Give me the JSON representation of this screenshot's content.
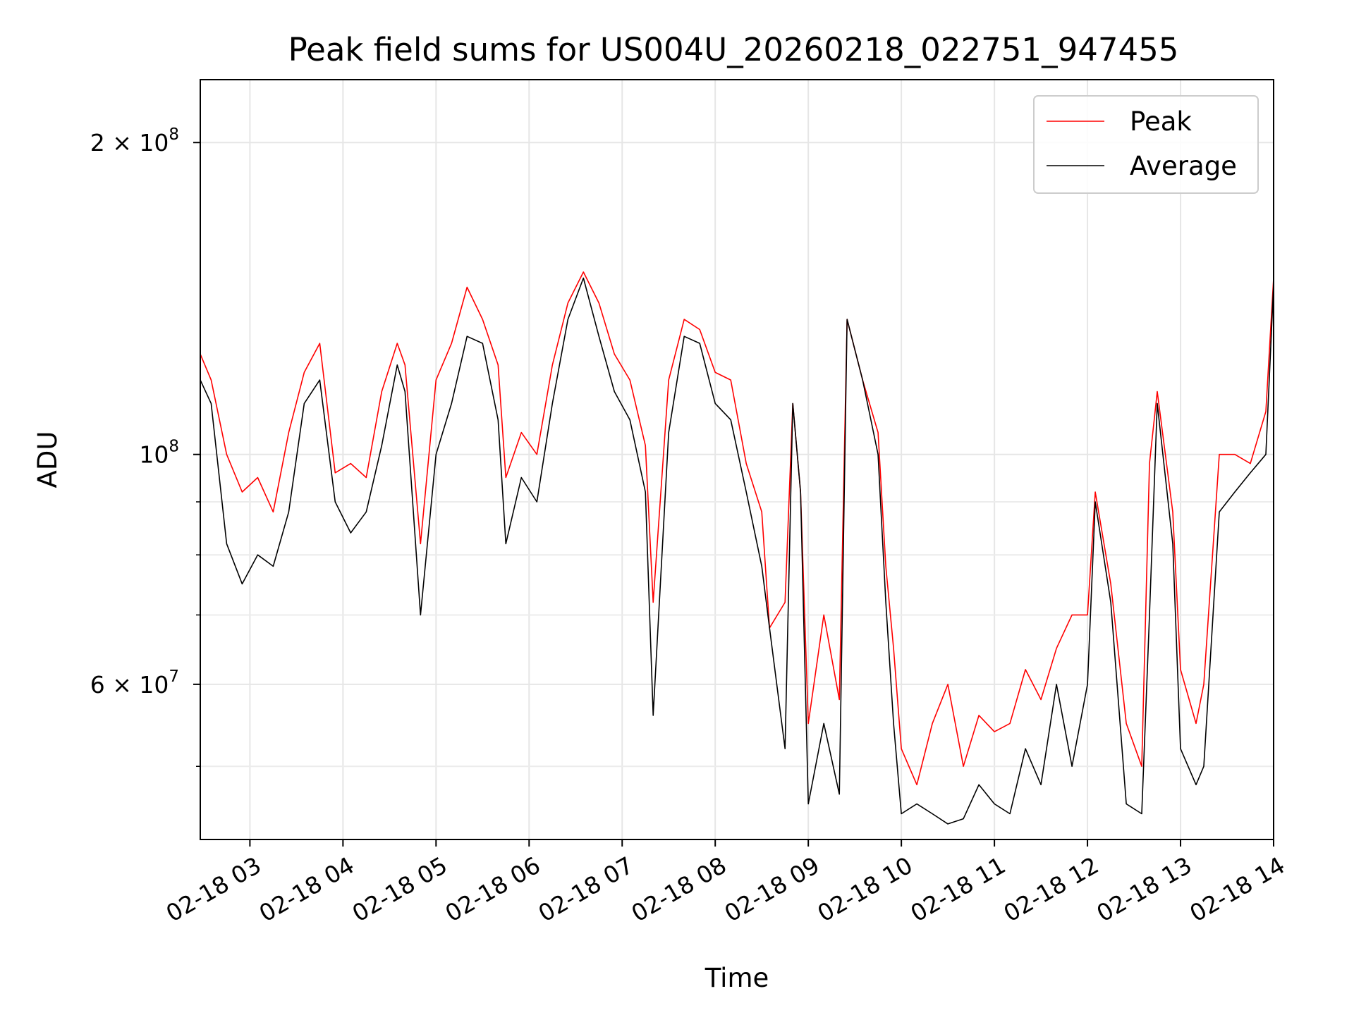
{
  "chart_data": {
    "type": "line",
    "title": "Peak field sums for US004U_20260218_022751_947455",
    "xlabel": "Time",
    "ylabel": "ADU",
    "y_scale": "log",
    "ylim": [
      42500000,
      230000000
    ],
    "xlim": [
      "2026-02-18 02:28",
      "2026-02-18 14:00"
    ],
    "x_ticks": [
      {
        "at": "2026-02-18 03:00",
        "label": "02-18 03"
      },
      {
        "at": "2026-02-18 04:00",
        "label": "02-18 04"
      },
      {
        "at": "2026-02-18 05:00",
        "label": "02-18 05"
      },
      {
        "at": "2026-02-18 06:00",
        "label": "02-18 06"
      },
      {
        "at": "2026-02-18 07:00",
        "label": "02-18 07"
      },
      {
        "at": "2026-02-18 08:00",
        "label": "02-18 08"
      },
      {
        "at": "2026-02-18 09:00",
        "label": "02-18 09"
      },
      {
        "at": "2026-02-18 10:00",
        "label": "02-18 10"
      },
      {
        "at": "2026-02-18 11:00",
        "label": "02-18 11"
      },
      {
        "at": "2026-02-18 12:00",
        "label": "02-18 12"
      },
      {
        "at": "2026-02-18 13:00",
        "label": "02-18 13"
      },
      {
        "at": "2026-02-18 14:00",
        "label": "02-18 14"
      }
    ],
    "y_major_ticks": [
      {
        "value": 60000000,
        "base": "6 × 10",
        "exp": "7"
      },
      {
        "value": 100000000,
        "base": "10",
        "exp": "8"
      },
      {
        "value": 200000000,
        "base": "2 × 10",
        "exp": "8"
      }
    ],
    "y_minor_ticks": [
      50000000,
      70000000,
      80000000,
      90000000
    ],
    "grid": true,
    "legend_position": "top-right",
    "series": [
      {
        "name": "Peak",
        "color": "#ff0000",
        "x": [
          "2026-02-18 02:28",
          "2026-02-18 02:35",
          "2026-02-18 02:45",
          "2026-02-18 02:55",
          "2026-02-18 03:05",
          "2026-02-18 03:15",
          "2026-02-18 03:25",
          "2026-02-18 03:35",
          "2026-02-18 03:45",
          "2026-02-18 03:55",
          "2026-02-18 04:05",
          "2026-02-18 04:15",
          "2026-02-18 04:25",
          "2026-02-18 04:35",
          "2026-02-18 04:40",
          "2026-02-18 04:50",
          "2026-02-18 05:00",
          "2026-02-18 05:10",
          "2026-02-18 05:20",
          "2026-02-18 05:30",
          "2026-02-18 05:40",
          "2026-02-18 05:45",
          "2026-02-18 05:55",
          "2026-02-18 06:05",
          "2026-02-18 06:15",
          "2026-02-18 06:25",
          "2026-02-18 06:35",
          "2026-02-18 06:45",
          "2026-02-18 06:55",
          "2026-02-18 07:05",
          "2026-02-18 07:15",
          "2026-02-18 07:20",
          "2026-02-18 07:30",
          "2026-02-18 07:40",
          "2026-02-18 07:50",
          "2026-02-18 08:00",
          "2026-02-18 08:10",
          "2026-02-18 08:20",
          "2026-02-18 08:30",
          "2026-02-18 08:35",
          "2026-02-18 08:45",
          "2026-02-18 08:50",
          "2026-02-18 08:55",
          "2026-02-18 09:00",
          "2026-02-18 09:10",
          "2026-02-18 09:20",
          "2026-02-18 09:25",
          "2026-02-18 09:35",
          "2026-02-18 09:45",
          "2026-02-18 09:50",
          "2026-02-18 09:55",
          "2026-02-18 10:00",
          "2026-02-18 10:10",
          "2026-02-18 10:20",
          "2026-02-18 10:30",
          "2026-02-18 10:40",
          "2026-02-18 10:50",
          "2026-02-18 11:00",
          "2026-02-18 11:10",
          "2026-02-18 11:20",
          "2026-02-18 11:30",
          "2026-02-18 11:40",
          "2026-02-18 11:50",
          "2026-02-18 12:00",
          "2026-02-18 12:05",
          "2026-02-18 12:15",
          "2026-02-18 12:25",
          "2026-02-18 12:35",
          "2026-02-18 12:40",
          "2026-02-18 12:45",
          "2026-02-18 12:55",
          "2026-02-18 13:00",
          "2026-02-18 13:10",
          "2026-02-18 13:15",
          "2026-02-18 13:25",
          "2026-02-18 13:35",
          "2026-02-18 13:45",
          "2026-02-18 13:55",
          "2026-02-18 14:00"
        ],
        "values": [
          125000000,
          118000000,
          100000000,
          92000000,
          95000000,
          88000000,
          105000000,
          120000000,
          128000000,
          96000000,
          98000000,
          95000000,
          115000000,
          128000000,
          122000000,
          82000000,
          118000000,
          128000000,
          145000000,
          135000000,
          122000000,
          95000000,
          105000000,
          100000000,
          122000000,
          140000000,
          150000000,
          140000000,
          125000000,
          118000000,
          102000000,
          72000000,
          118000000,
          135000000,
          132000000,
          120000000,
          118000000,
          98000000,
          88000000,
          68000000,
          72000000,
          112000000,
          92000000,
          55000000,
          70000000,
          58000000,
          135000000,
          118000000,
          105000000,
          78000000,
          65000000,
          52000000,
          48000000,
          55000000,
          60000000,
          50000000,
          56000000,
          54000000,
          55000000,
          62000000,
          58000000,
          65000000,
          70000000,
          70000000,
          92000000,
          75000000,
          55000000,
          50000000,
          98000000,
          115000000,
          88000000,
          62000000,
          55000000,
          60000000,
          100000000,
          100000000,
          98000000,
          110000000,
          148000000
        ]
      },
      {
        "name": "Average",
        "color": "#000000",
        "x": [
          "2026-02-18 02:28",
          "2026-02-18 02:35",
          "2026-02-18 02:45",
          "2026-02-18 02:55",
          "2026-02-18 03:05",
          "2026-02-18 03:15",
          "2026-02-18 03:25",
          "2026-02-18 03:35",
          "2026-02-18 03:45",
          "2026-02-18 03:55",
          "2026-02-18 04:05",
          "2026-02-18 04:15",
          "2026-02-18 04:25",
          "2026-02-18 04:35",
          "2026-02-18 04:40",
          "2026-02-18 04:50",
          "2026-02-18 05:00",
          "2026-02-18 05:10",
          "2026-02-18 05:20",
          "2026-02-18 05:30",
          "2026-02-18 05:40",
          "2026-02-18 05:45",
          "2026-02-18 05:55",
          "2026-02-18 06:05",
          "2026-02-18 06:15",
          "2026-02-18 06:25",
          "2026-02-18 06:35",
          "2026-02-18 06:45",
          "2026-02-18 06:55",
          "2026-02-18 07:05",
          "2026-02-18 07:15",
          "2026-02-18 07:20",
          "2026-02-18 07:30",
          "2026-02-18 07:40",
          "2026-02-18 07:50",
          "2026-02-18 08:00",
          "2026-02-18 08:10",
          "2026-02-18 08:20",
          "2026-02-18 08:30",
          "2026-02-18 08:35",
          "2026-02-18 08:45",
          "2026-02-18 08:50",
          "2026-02-18 08:55",
          "2026-02-18 09:00",
          "2026-02-18 09:10",
          "2026-02-18 09:20",
          "2026-02-18 09:25",
          "2026-02-18 09:35",
          "2026-02-18 09:45",
          "2026-02-18 09:50",
          "2026-02-18 09:55",
          "2026-02-18 10:00",
          "2026-02-18 10:10",
          "2026-02-18 10:20",
          "2026-02-18 10:30",
          "2026-02-18 10:40",
          "2026-02-18 10:50",
          "2026-02-18 11:00",
          "2026-02-18 11:10",
          "2026-02-18 11:20",
          "2026-02-18 11:30",
          "2026-02-18 11:40",
          "2026-02-18 11:50",
          "2026-02-18 12:00",
          "2026-02-18 12:05",
          "2026-02-18 12:15",
          "2026-02-18 12:25",
          "2026-02-18 12:35",
          "2026-02-18 12:40",
          "2026-02-18 12:45",
          "2026-02-18 12:55",
          "2026-02-18 13:00",
          "2026-02-18 13:10",
          "2026-02-18 13:15",
          "2026-02-18 13:25",
          "2026-02-18 13:35",
          "2026-02-18 13:45",
          "2026-02-18 13:55",
          "2026-02-18 14:00"
        ],
        "values": [
          118000000,
          112000000,
          82000000,
          75000000,
          80000000,
          78000000,
          88000000,
          112000000,
          118000000,
          90000000,
          84000000,
          88000000,
          102000000,
          122000000,
          115000000,
          70000000,
          100000000,
          112000000,
          130000000,
          128000000,
          108000000,
          82000000,
          95000000,
          90000000,
          112000000,
          135000000,
          148000000,
          130000000,
          115000000,
          108000000,
          92000000,
          56000000,
          105000000,
          130000000,
          128000000,
          112000000,
          108000000,
          92000000,
          78000000,
          68000000,
          52000000,
          112000000,
          92000000,
          46000000,
          55000000,
          47000000,
          135000000,
          118000000,
          100000000,
          72000000,
          55000000,
          45000000,
          46000000,
          45000000,
          44000000,
          44500000,
          48000000,
          46000000,
          45000000,
          52000000,
          48000000,
          60000000,
          50000000,
          60000000,
          90000000,
          72000000,
          46000000,
          45000000,
          70000000,
          112000000,
          82000000,
          52000000,
          48000000,
          50000000,
          88000000,
          92000000,
          96000000,
          100000000,
          146000000
        ]
      }
    ]
  }
}
